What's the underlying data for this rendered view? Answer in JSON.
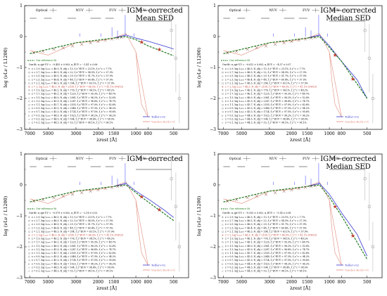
{
  "colors": {
    "sed": "#7a3b2a",
    "reference": "#1e7a1e",
    "telfer": "#3535d0",
    "vanden_berk": "#e08a7a",
    "star": "#c0392b",
    "band_line": "#888888",
    "stack_line": "#5a5aff"
  },
  "bands": [
    "Optical",
    "NUV",
    "FUV",
    "EUV"
  ],
  "xlabel": "λrest [Å]",
  "ylabel": "log (νLν / L1200)",
  "x_ticks": [
    "7000",
    "5000",
    "3000",
    "2000",
    "1500",
    "1000",
    "800",
    "500"
  ],
  "y_ticks": [
    "1",
    "0",
    "−1",
    "−2",
    "−3"
  ],
  "reference_label": "Our reference fit",
  "telfer_label": "Telfer+02",
  "vanden_berk_label": "Vanden Berk+01",
  "legend_rows": [
    {
      "m": "×",
      "t": "z = 2.9,  log L₁₂₀₀ = 46.5,  N_obj = 13,  f_z^EUV = 23.1%,  f_z^c = 7.7%"
    },
    {
      "m": "○",
      "t": "z = 2.7,  log L₁₂₀₀ = 46.5,  N_obj = 22,  f_z^EUV = 54.5%,  f_z^c = 27.3%"
    },
    {
      "m": "△",
      "t": "z = 2.5,  log L₁₂₀₀ = 46.5,  N_obj = 29,  f_z^EUV = 51.7%,  f_z^c = 37.9%"
    },
    {
      "m": "◇",
      "t": "z = 2.3,  log L₁₂₀₀ = 46.4,  N_obj = 48,  f_z^EUV = 60.4%,  f_z^c = 37.5%"
    },
    {
      "m": "□",
      "t": "z = 2.1,  log L₁₂₀₀ = 46.3,  N_obj = 354,  f_z^EUV = 63.1%,  f_z^c = 37.9%"
    },
    {
      "m": "★",
      "t": "z = 2,  log L₁₂₀₀ = 46.3,  N_obj = 2198,  f_z^EUV = 66.5%,  f_z^c = 41.1% (CW23)",
      "highlight": true
    },
    {
      "m": "×",
      "t": "z = 1.9,  log L₁₂₀₀ = 46.1,  N_obj = 776,  f_z^EUV = 94.1%,  f_z^c = 48.2%"
    },
    {
      "m": "○",
      "t": "z = 1.7,  log L₁₂₀₀ = 46.1,  N_obj = 1225,  f_z^EUV = 95.3%,  f_z^c = 48.7%"
    },
    {
      "m": "△",
      "t": "z = 1.5,  log L₁₂₀₀ = 46.0,  N_obj = 2061,  f_z^EUV = 96.2%,  f_z^c = 52.6%"
    },
    {
      "m": "◇",
      "t": "z = 1.3,  log L₁₂₀₀ = 45.9,  N_obj = 2287,  f_z^EUV = 96.8%,  f_z^c = 74.7%"
    },
    {
      "m": "□",
      "t": "z = 1.1,  log L₁₂₀₀ = 45.7,  N_obj = 2535,  f_z^EUV = 97.0%,  f_z^c = 82.6%"
    },
    {
      "m": "⬠",
      "t": "z = 0.9,  log L₁₂₀₀ = 45.5,  N_obj = 2048,  f_z^EUV = 97.3%,  f_z^c = 94.2%"
    },
    {
      "m": "◁",
      "t": "z = 0.7,  log L₁₂₀₀ = 45.3,  N_obj = 1724,  f_z^EUV = 97.5%,  f_z^c = 95.6%"
    },
    {
      "m": "▷",
      "t": "z = 0.5,  log L₁₂₀₀ = 44.9,  N_obj = 1023,  f_z^EUV = 98.2%,  f_z^c = 96.2%"
    },
    {
      "m": "☆",
      "t": "z = 0.3,  log L₁₂₀₀ = 44.5,  N_obj = 504,  f_z^EUV = 98.4%,  f_z^c = 98.0%"
    },
    {
      "m": "☆",
      "t": "z = 0.1,  log L₁₂₀₀ = 44.3,  N_obj = 53,  f_z^EUV = 98.1%,  f_z^c = 98.1%"
    }
  ],
  "panels": [
    {
      "title": [
        "IGM−corrected",
        "Mean SED"
      ],
      "fit_text": "Our fit: α_opt-UV = −0.455 ± 0.003, α_EUV = −1.41 ± 0.06",
      "fit_highlight": "α_EUV = −1.41 ± 0.06"
    },
    {
      "title": [
        "IGM−corrected",
        "Median SED"
      ],
      "fit_text": "Our fit: α_opt-UV = −0.612 ± 0.003, α_EUV = −4.37 ± 0.07",
      "fit_highlight": ""
    },
    {
      "title": [
        "IGM−corrected",
        ""
      ],
      "fit_text": "Our fit: α_opt-UV = −0.579 ± 0.002, α_EUV = −2.18 ± 0.02",
      "fit_highlight": ""
    },
    {
      "title": [
        "IGM−corrected",
        "Median SED"
      ],
      "fit_text": "Our fit: α_opt-UV = −0.535 ± 0.002, α_EUV = −5.14 ± 0.08",
      "fit_highlight": ""
    }
  ],
  "chart_data": [
    {
      "type": "line",
      "title": "IGM−corrected Mean SED",
      "xlabel": "λrest [Å]",
      "ylabel": "log (νLν / L1200)",
      "x_scale": "log",
      "xlim": [
        7700,
        380
      ],
      "ylim": [
        -3,
        1
      ],
      "series": [
        {
          "name": "Our reference fit",
          "x": [
            7000,
            3000,
            1200,
            1000,
            800,
            500
          ],
          "y": [
            -0.55,
            -0.2,
            0.0,
            -0.1,
            -0.3,
            -0.62
          ]
        },
        {
          "name": "Telfer+02",
          "x": [
            1500,
            1200,
            1000,
            800,
            600,
            500
          ],
          "y": [
            -0.05,
            0.05,
            -0.05,
            -0.15,
            -0.3,
            -0.4
          ]
        },
        {
          "name": "Vanden Berk+01",
          "x": [
            7000,
            5000,
            3000,
            2000,
            1500,
            1200,
            1000,
            800
          ],
          "y": [
            -0.45,
            -0.6,
            -0.2,
            -0.15,
            -0.05,
            0.1,
            -0.5,
            -2.6
          ]
        }
      ]
    },
    {
      "type": "line",
      "title": "IGM−corrected Median SED",
      "xlabel": "λrest [Å]",
      "ylabel": "log (νLν / L1200)",
      "x_scale": "log",
      "xlim": [
        7700,
        380
      ],
      "ylim": [
        -3,
        1
      ],
      "series": [
        {
          "name": "Our reference fit",
          "x": [
            7000,
            3000,
            1200,
            1000,
            800,
            500
          ],
          "y": [
            -0.55,
            -0.2,
            0.0,
            -0.35,
            -0.8,
            -2.0
          ]
        },
        {
          "name": "Telfer+02",
          "x": [
            1500,
            1200,
            1000,
            800,
            600,
            500
          ],
          "y": [
            -0.05,
            0.05,
            -0.3,
            -0.8,
            -1.4,
            -2.0
          ]
        },
        {
          "name": "Vanden Berk+01",
          "x": [
            7000,
            5000,
            3000,
            2000,
            1500,
            1200,
            1000,
            800
          ],
          "y": [
            -0.45,
            -0.6,
            -0.2,
            -0.15,
            -0.05,
            0.1,
            -0.5,
            -2.6
          ]
        }
      ]
    },
    {
      "type": "line",
      "title": "IGM−corrected",
      "xlabel": "λrest [Å]",
      "ylabel": "log (νLν / L1200)",
      "x_scale": "log",
      "xlim": [
        7700,
        380
      ],
      "ylim": [
        -3,
        1
      ],
      "series": [
        {
          "name": "Our reference fit",
          "x": [
            7000,
            3000,
            1200,
            1000,
            800,
            500
          ],
          "y": [
            -0.55,
            -0.2,
            0.0,
            -0.25,
            -0.55,
            -1.15
          ]
        },
        {
          "name": "Telfer+02",
          "x": [
            1500,
            1200,
            1000,
            800,
            600,
            500
          ],
          "y": [
            -0.05,
            0.05,
            -0.2,
            -0.45,
            -0.8,
            -1.05
          ]
        },
        {
          "name": "Vanden Berk+01",
          "x": [
            7000,
            5000,
            3000,
            2000,
            1500,
            1200,
            1000,
            800
          ],
          "y": [
            -0.45,
            -0.6,
            -0.2,
            -0.15,
            -0.05,
            0.1,
            -0.5,
            -2.6
          ]
        }
      ]
    },
    {
      "type": "line",
      "title": "IGM−corrected Median SED",
      "xlabel": "λrest [Å]",
      "ylabel": "log (νLν / L1200)",
      "x_scale": "log",
      "xlim": [
        7700,
        380
      ],
      "ylim": [
        -3,
        1
      ],
      "series": [
        {
          "name": "Our reference fit",
          "x": [
            7000,
            3000,
            1200,
            1000,
            800,
            500
          ],
          "y": [
            -0.55,
            -0.2,
            0.0,
            -0.4,
            -1.0,
            -2.4
          ]
        },
        {
          "name": "Telfer+02",
          "x": [
            1500,
            1200,
            1000,
            800,
            600,
            500
          ],
          "y": [
            -0.05,
            0.05,
            -0.3,
            -0.9,
            -1.6,
            -2.3
          ]
        },
        {
          "name": "Vanden Berk+01",
          "x": [
            7000,
            5000,
            3000,
            2000,
            1500,
            1200,
            1000,
            800
          ],
          "y": [
            -0.45,
            -0.6,
            -0.2,
            -0.15,
            -0.05,
            0.1,
            -0.5,
            -2.6
          ]
        }
      ]
    }
  ]
}
